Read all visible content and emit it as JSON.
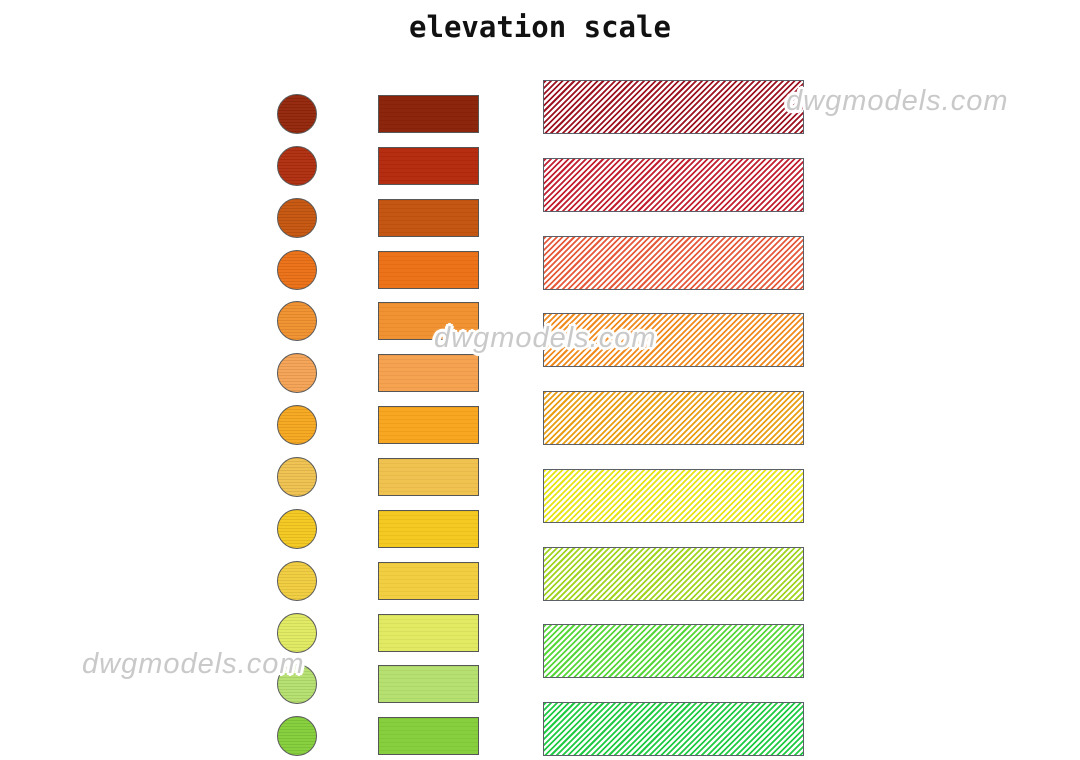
{
  "title": "elevation scale",
  "watermarks": [
    {
      "text": "dwgmodels.com"
    },
    {
      "text": "dwgmodels.com"
    },
    {
      "text": "dwgmodels.com"
    }
  ],
  "scale": {
    "circle_colors": [
      "#93260A",
      "#B02D0E",
      "#C5560F",
      "#EB7015",
      "#F1912E",
      "#F5A355",
      "#F6A71E",
      "#EFC24F",
      "#F3C81F",
      "#F1CD3E",
      "#E1EA61",
      "#B5E06E",
      "#84CF3A"
    ],
    "swatch_colors": [
      "#8A2309",
      "#B42A0D",
      "#C4540F",
      "#ED7016",
      "#F1912E",
      "#F5A04E",
      "#F7A51D",
      "#F0C24E",
      "#F4C81E",
      "#F2CE3E",
      "#E1EA61",
      "#B5E06E",
      "#86CE3B"
    ],
    "bar_hatch_colors": [
      "#9E1322",
      "#C21F30",
      "#E65A3B",
      "#F08A1C",
      "#E99D12",
      "#E6E414",
      "#A0D41E",
      "#55D837",
      "#1FCB42"
    ]
  },
  "style": {
    "background": "#ffffff",
    "title_color": "#111111",
    "watermark_color": "#c9c9c9",
    "shape_outline_color": "#565656",
    "bar_outline_color": "#5b6068"
  }
}
